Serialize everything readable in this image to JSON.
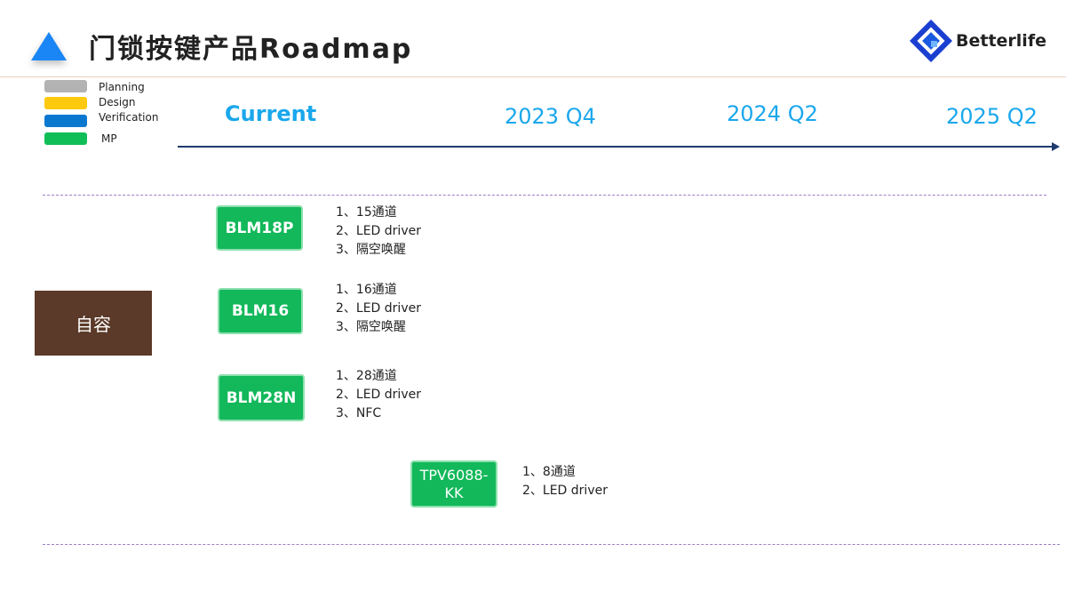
{
  "header": {
    "title": "门锁按键产品Roadmap",
    "logo_text": "Betterlife"
  },
  "legend": [
    {
      "label": "Planning",
      "color": "#b3b3b3"
    },
    {
      "label": "Design",
      "color": "#ffc90e"
    },
    {
      "label": "Verification",
      "color": "#0b78d0"
    },
    {
      "label": "MP",
      "color": "#0fbe57"
    }
  ],
  "timeline": {
    "current": "Current",
    "q1": "2023 Q4",
    "q2": "2024 Q2",
    "q3": "2025 Q2"
  },
  "category": "自容",
  "products": [
    {
      "name": "BLM18P",
      "features": [
        "1、15通道",
        "2、LED driver",
        "3、隔空唤醒"
      ]
    },
    {
      "name": "BLM16",
      "features": [
        "1、16通道",
        "2、LED driver",
        "3、隔空唤醒"
      ]
    },
    {
      "name": "BLM28N",
      "features": [
        "1、28通道",
        "2、LED driver",
        "3、NFC"
      ]
    },
    {
      "name": "TPV6088-KK",
      "features": [
        "1、8通道",
        "2、LED driver"
      ]
    }
  ]
}
